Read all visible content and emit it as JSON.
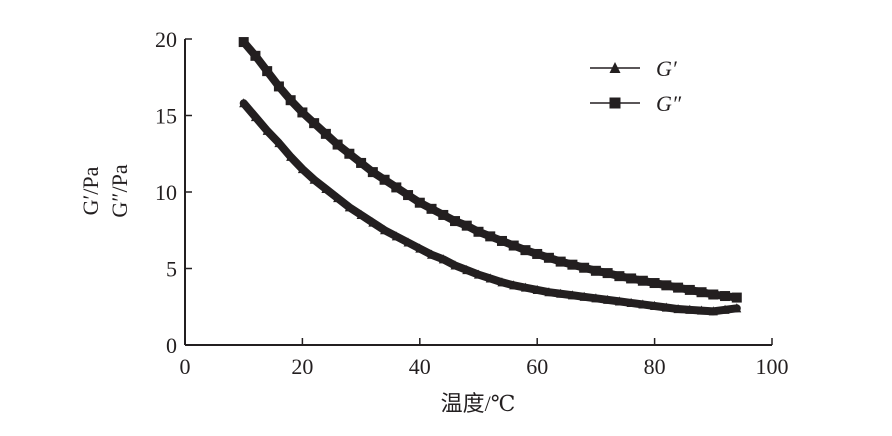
{
  "chart_data": {
    "type": "line",
    "title": "",
    "xlabel": "温度/℃",
    "ylabel_lines": [
      "G′/Pa",
      "G″/Pa"
    ],
    "xlim": [
      0,
      100
    ],
    "ylim": [
      0,
      20
    ],
    "xticks": [
      0,
      20,
      40,
      60,
      80,
      100
    ],
    "yticks": [
      0,
      5,
      10,
      15,
      20
    ],
    "grid": false,
    "legend_position": "top-right",
    "x": [
      10,
      12,
      14,
      16,
      18,
      20,
      22,
      24,
      26,
      28,
      30,
      32,
      34,
      36,
      38,
      40,
      42,
      44,
      46,
      48,
      50,
      52,
      54,
      56,
      58,
      60,
      62,
      64,
      66,
      68,
      70,
      72,
      74,
      76,
      78,
      80,
      82,
      84,
      86,
      88,
      90,
      92,
      94
    ],
    "series": [
      {
        "name": "G′",
        "marker": "triangle",
        "color": "#231f20",
        "values": [
          15.8,
          14.9,
          14.0,
          13.2,
          12.3,
          11.5,
          10.8,
          10.2,
          9.6,
          9.0,
          8.5,
          8.0,
          7.5,
          7.1,
          6.7,
          6.3,
          5.9,
          5.6,
          5.2,
          4.9,
          4.6,
          4.35,
          4.1,
          3.9,
          3.75,
          3.6,
          3.45,
          3.35,
          3.25,
          3.15,
          3.05,
          2.95,
          2.85,
          2.75,
          2.65,
          2.55,
          2.45,
          2.35,
          2.3,
          2.25,
          2.2,
          2.3,
          2.4
        ]
      },
      {
        "name": "G″",
        "marker": "square",
        "color": "#231f20",
        "values": [
          19.8,
          18.9,
          17.9,
          16.9,
          16.0,
          15.2,
          14.5,
          13.8,
          13.1,
          12.5,
          11.9,
          11.3,
          10.8,
          10.3,
          9.8,
          9.3,
          8.9,
          8.5,
          8.1,
          7.8,
          7.4,
          7.1,
          6.8,
          6.5,
          6.2,
          5.95,
          5.7,
          5.45,
          5.25,
          5.05,
          4.85,
          4.7,
          4.5,
          4.35,
          4.2,
          4.05,
          3.9,
          3.75,
          3.6,
          3.45,
          3.3,
          3.2,
          3.1
        ]
      }
    ]
  }
}
